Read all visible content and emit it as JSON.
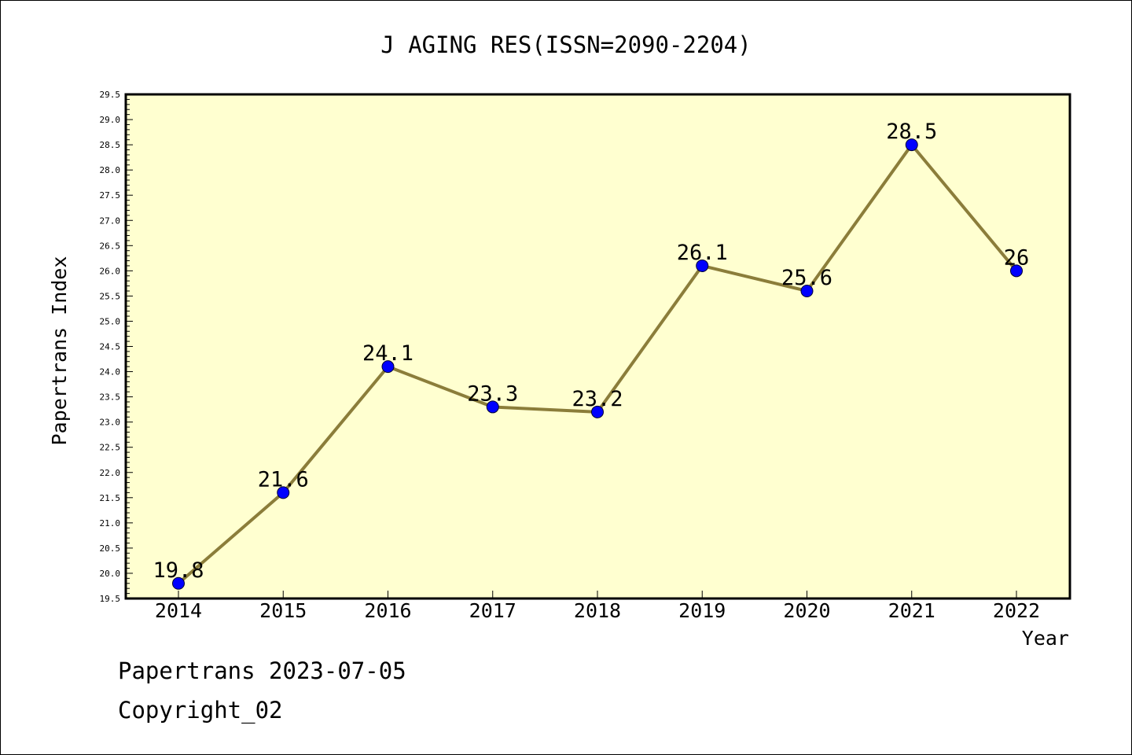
{
  "chart_data": {
    "type": "line",
    "title": "J AGING RES(ISSN=2090-2204)",
    "xlabel": "Year",
    "ylabel": "Papertrans Index",
    "x": [
      "2014",
      "2015",
      "2016",
      "2017",
      "2018",
      "2019",
      "2020",
      "2021",
      "2022"
    ],
    "series": [
      {
        "values": [
          19.8,
          21.6,
          24.1,
          23.3,
          23.2,
          26.1,
          25.6,
          28.5,
          26.0
        ],
        "labels": [
          "19.8",
          "21.6",
          "24.1",
          "23.3",
          "23.2",
          "26.1",
          "25.6",
          "28.5",
          "26"
        ]
      }
    ],
    "ylim": [
      19.5,
      29.5
    ],
    "yticks": [
      "19.5",
      "20.0",
      "20.5",
      "21.0",
      "21.5",
      "22.0",
      "22.5",
      "23.0",
      "23.5",
      "24.0",
      "24.5",
      "25.0",
      "25.5",
      "26.0",
      "26.5",
      "27.0",
      "27.5",
      "28.0",
      "28.5",
      "29.0",
      "29.5"
    ],
    "grid": false,
    "colors": {
      "plot_background": "#ffffd0",
      "line": "#8b7d3a",
      "marker": "#0000ff"
    }
  },
  "footer": {
    "line1": "Papertrans 2023-07-05",
    "line2": "Copyright_02"
  }
}
